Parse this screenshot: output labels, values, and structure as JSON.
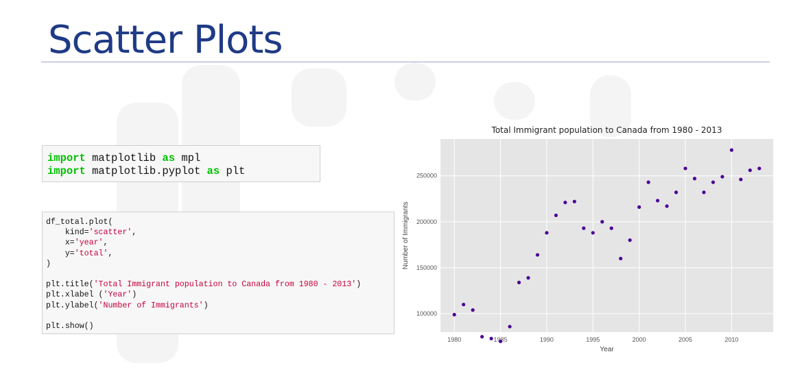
{
  "slide": {
    "title": "Scatter Plots"
  },
  "code": {
    "imports": [
      {
        "kw": "import",
        "mid": " matplotlib ",
        "kw2": "as",
        "tail": " mpl"
      },
      {
        "kw": "import",
        "mid": " matplotlib.pyplot ",
        "kw2": "as",
        "tail": " plt"
      }
    ],
    "plot_lines": [
      [
        {
          "t": "df_total.plot("
        }
      ],
      [
        {
          "t": "    kind="
        },
        {
          "t": "'scatter'",
          "s": 1
        },
        {
          "t": ","
        }
      ],
      [
        {
          "t": "    x="
        },
        {
          "t": "'year'",
          "s": 1
        },
        {
          "t": ","
        }
      ],
      [
        {
          "t": "    y="
        },
        {
          "t": "'total'",
          "s": 1
        },
        {
          "t": ","
        }
      ],
      [
        {
          "t": ")"
        }
      ],
      [
        {
          "t": ""
        }
      ],
      [
        {
          "t": "plt.title("
        },
        {
          "t": "'Total Immigrant population to Canada from 1980 - 2013'",
          "s": 1
        },
        {
          "t": ")"
        }
      ],
      [
        {
          "t": "plt.xlabel ("
        },
        {
          "t": "'Year'",
          "s": 1
        },
        {
          "t": ")"
        }
      ],
      [
        {
          "t": "plt.ylabel("
        },
        {
          "t": "'Number of Immigrants'",
          "s": 1
        },
        {
          "t": ")"
        }
      ],
      [
        {
          "t": ""
        }
      ],
      [
        {
          "t": "plt.show()"
        }
      ]
    ]
  },
  "chart_data": {
    "type": "scatter",
    "title": "Total Immigrant population to Canada from 1980 - 2013",
    "xlabel": "Year",
    "ylabel": "Number of Immigrants",
    "xlim": [
      1978.5,
      2014.5
    ],
    "ylim": [
      80000,
      290000
    ],
    "xticks": [
      1980,
      1985,
      1990,
      1995,
      2000,
      2005,
      2010
    ],
    "yticks": [
      100000,
      150000,
      200000,
      250000
    ],
    "grid": true,
    "marker_color": "#4b0096",
    "background_color": "#e5e5e5",
    "x": [
      1980,
      1981,
      1982,
      1983,
      1984,
      1985,
      1986,
      1987,
      1988,
      1989,
      1990,
      1991,
      1992,
      1993,
      1994,
      1995,
      1996,
      1997,
      1998,
      1999,
      2000,
      2001,
      2002,
      2003,
      2004,
      2005,
      2006,
      2007,
      2008,
      2009,
      2010,
      2011,
      2012,
      2013
    ],
    "y": [
      99000,
      110000,
      104000,
      75000,
      73000,
      70000,
      86000,
      134000,
      139000,
      164000,
      188000,
      207000,
      221000,
      222000,
      193000,
      188000,
      200000,
      193000,
      160000,
      180000,
      216000,
      243000,
      223000,
      217000,
      232000,
      258000,
      247000,
      232000,
      243000,
      249000,
      278000,
      246000,
      256000,
      258000
    ]
  }
}
